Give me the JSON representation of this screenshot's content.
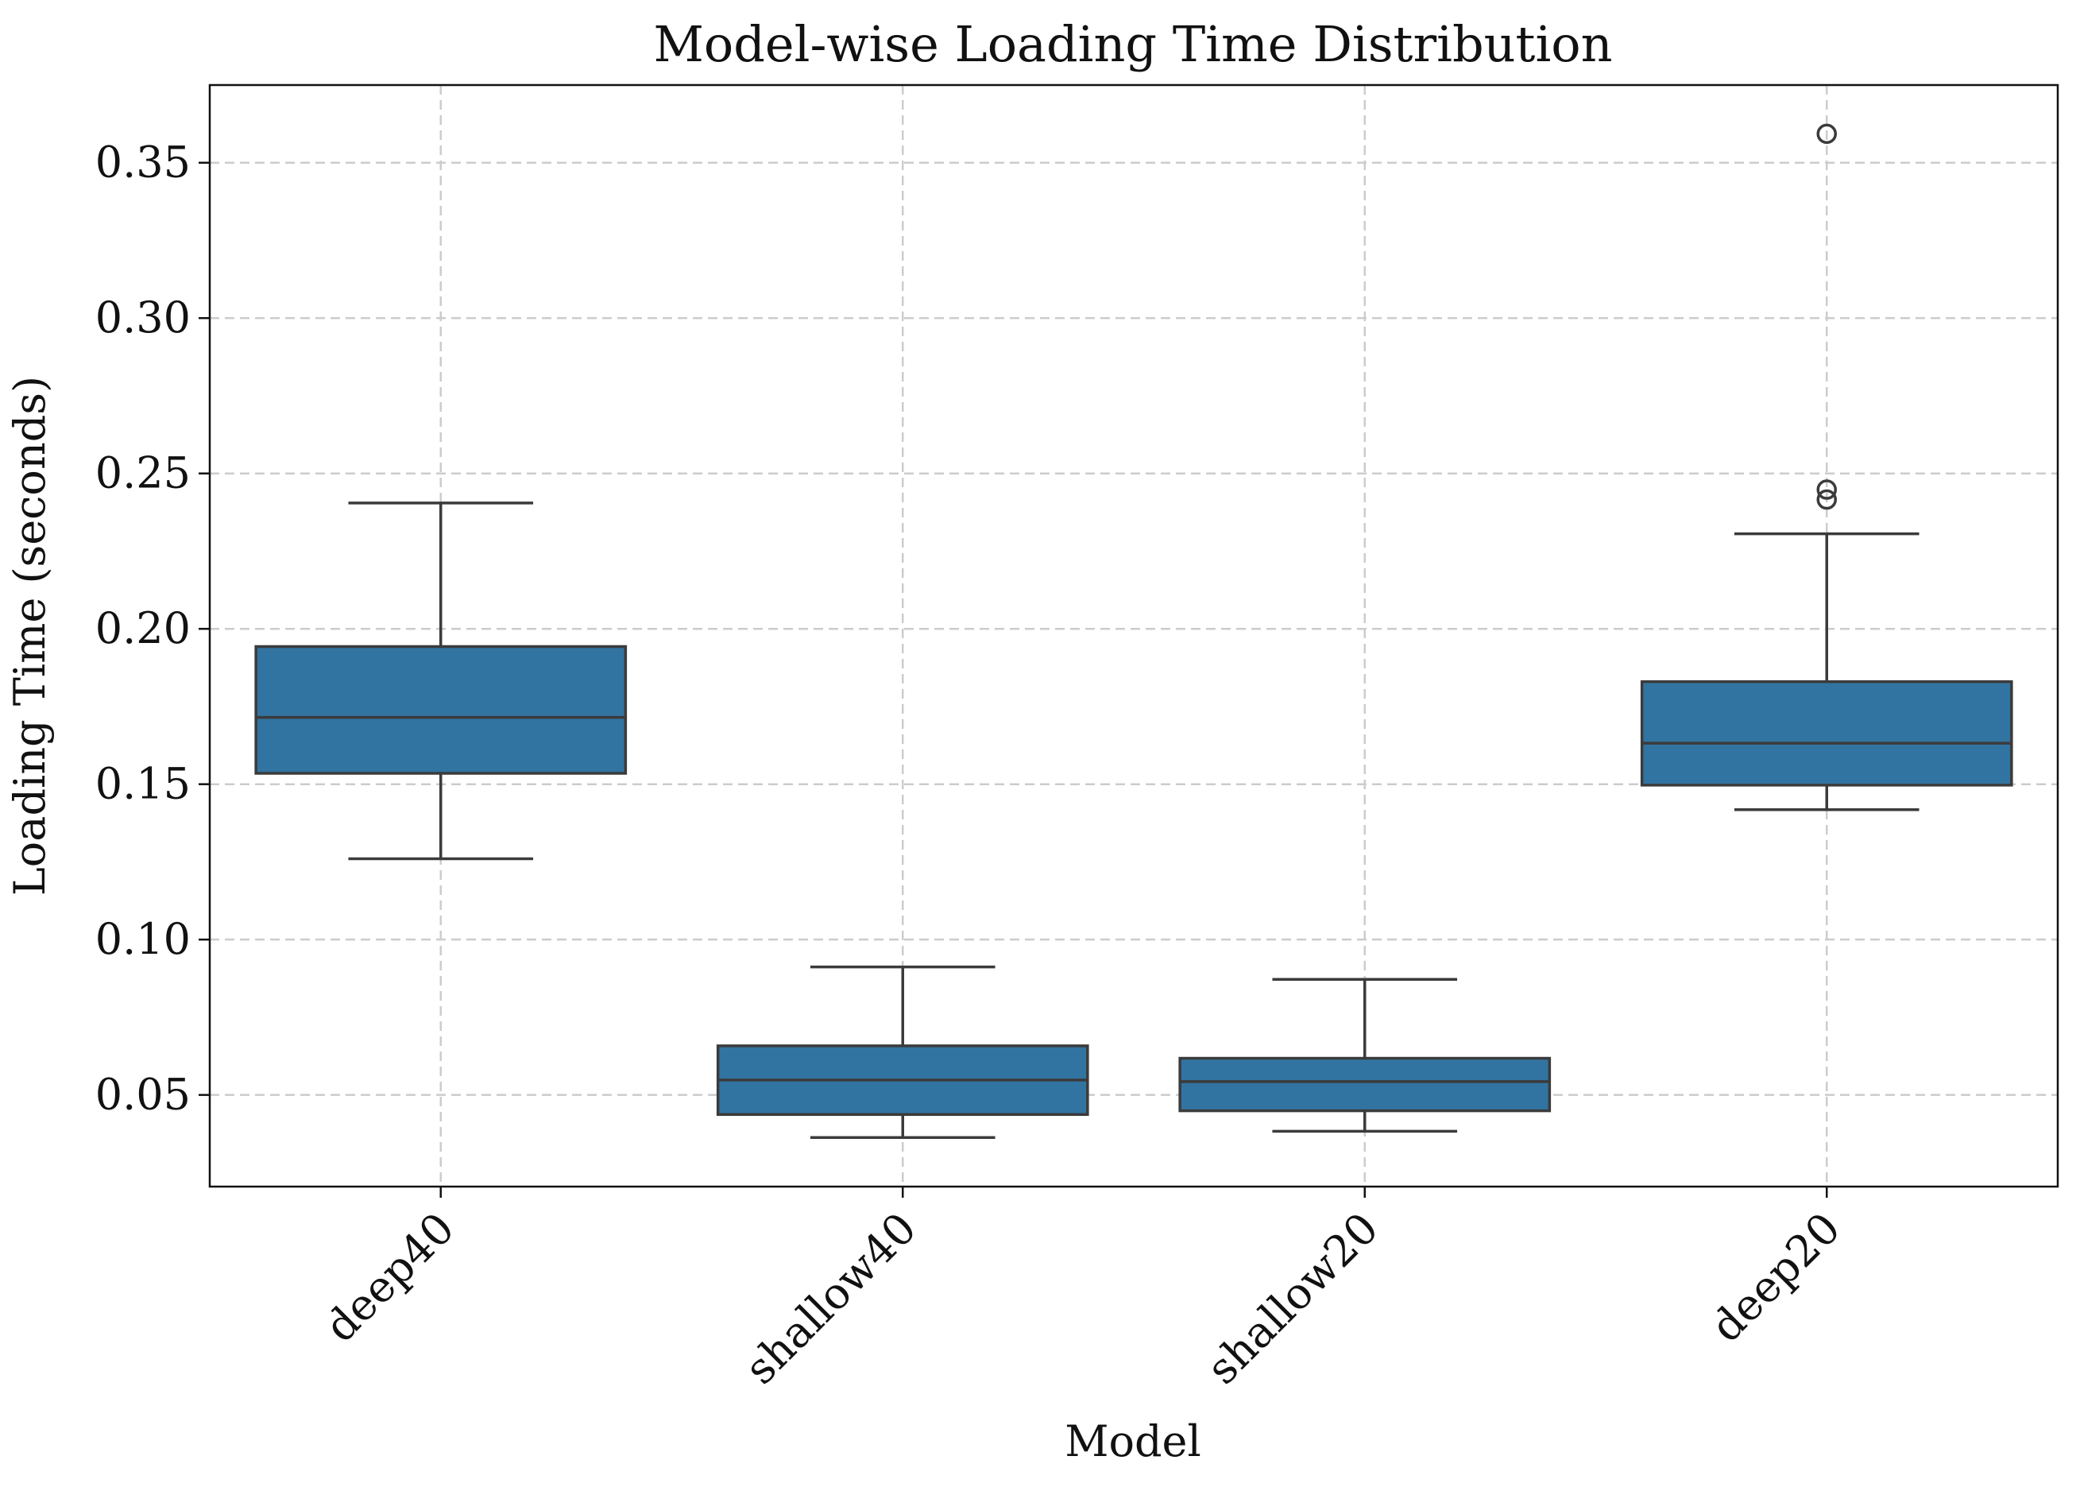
{
  "chart_data": {
    "type": "box",
    "title": "Model-wise Loading Time Distribution",
    "xlabel": "Model",
    "ylabel": "Loading Time (seconds)",
    "ylim": [
      0.0205,
      0.375
    ],
    "yticks": [
      0.05,
      0.1,
      0.15,
      0.2,
      0.25,
      0.3,
      0.35
    ],
    "ytick_labels": [
      "0.05",
      "0.10",
      "0.15",
      "0.20",
      "0.25",
      "0.30",
      "0.35"
    ],
    "grid": true,
    "box_color": "#3274a1",
    "categories": [
      "deep40",
      "shallow40",
      "shallow20",
      "deep20"
    ],
    "boxes": [
      {
        "category": "deep40",
        "whisker_low": 0.126,
        "q1": 0.1535,
        "median": 0.1715,
        "q3": 0.1943,
        "whisker_high": 0.2405,
        "outliers": []
      },
      {
        "category": "shallow40",
        "whisker_low": 0.0363,
        "q1": 0.0437,
        "median": 0.0548,
        "q3": 0.0658,
        "whisker_high": 0.0912,
        "outliers": []
      },
      {
        "category": "shallow20",
        "whisker_low": 0.0383,
        "q1": 0.0449,
        "median": 0.0543,
        "q3": 0.0618,
        "whisker_high": 0.0872,
        "outliers": []
      },
      {
        "category": "deep20",
        "whisker_low": 0.1418,
        "q1": 0.1497,
        "median": 0.1632,
        "q3": 0.183,
        "whisker_high": 0.2306,
        "outliers": [
          0.2416,
          0.2448,
          0.3593
        ]
      }
    ]
  }
}
